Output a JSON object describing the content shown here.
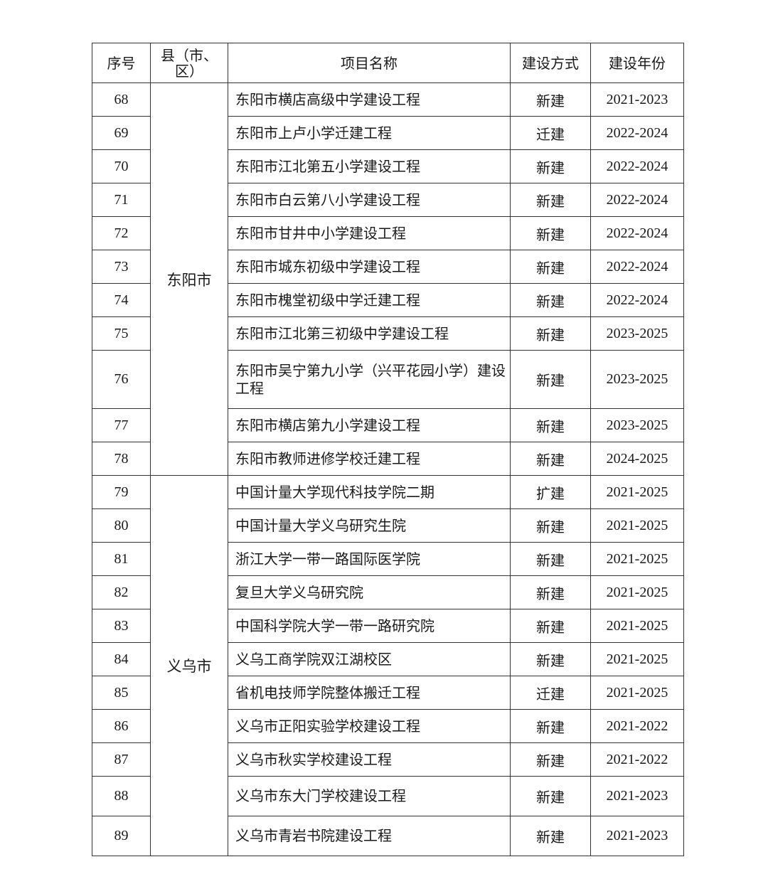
{
  "headers": [
    "序号",
    "县（市、区）",
    "项目名称",
    "建设方式",
    "建设年份"
  ],
  "groups": [
    {
      "county": "东阳市",
      "rows": [
        {
          "no": "68",
          "name": "东阳市横店高级中学建设工程",
          "method": "新建",
          "years": "2021-2023"
        },
        {
          "no": "69",
          "name": "东阳市上卢小学迁建工程",
          "method": "迁建",
          "years": "2022-2024"
        },
        {
          "no": "70",
          "name": "东阳市江北第五小学建设工程",
          "method": "新建",
          "years": "2022-2024"
        },
        {
          "no": "71",
          "name": "东阳市白云第八小学建设工程",
          "method": "新建",
          "years": "2022-2024"
        },
        {
          "no": "72",
          "name": "东阳市甘井中小学建设工程",
          "method": "新建",
          "years": "2022-2024"
        },
        {
          "no": "73",
          "name": "东阳市城东初级中学建设工程",
          "method": "新建",
          "years": "2022-2024"
        },
        {
          "no": "74",
          "name": "东阳市槐堂初级中学迁建工程",
          "method": "新建",
          "years": "2022-2024"
        },
        {
          "no": "75",
          "name": "东阳市江北第三初级中学建设工程",
          "method": "新建",
          "years": "2023-2025"
        },
        {
          "no": "76",
          "name": "东阳市吴宁第九小学（兴平花园小学）建设工程",
          "method": "新建",
          "years": "2023-2025"
        },
        {
          "no": "77",
          "name": "东阳市横店第九小学建设工程",
          "method": "新建",
          "years": "2023-2025"
        },
        {
          "no": "78",
          "name": "东阳市教师进修学校迁建工程",
          "method": "新建",
          "years": "2024-2025"
        }
      ]
    },
    {
      "county": "义乌市",
      "rows": [
        {
          "no": "79",
          "name": "中国计量大学现代科技学院二期",
          "method": "扩建",
          "years": "2021-2025"
        },
        {
          "no": "80",
          "name": "中国计量大学义乌研究生院",
          "method": "新建",
          "years": "2021-2025"
        },
        {
          "no": "81",
          "name": "浙江大学一带一路国际医学院",
          "method": "新建",
          "years": "2021-2025"
        },
        {
          "no": "82",
          "name": "复旦大学义乌研究院",
          "method": "新建",
          "years": "2021-2025"
        },
        {
          "no": "83",
          "name": "中国科学院大学一带一路研究院",
          "method": "新建",
          "years": "2021-2025"
        },
        {
          "no": "84",
          "name": "义乌工商学院双江湖校区",
          "method": "新建",
          "years": "2021-2025"
        },
        {
          "no": "85",
          "name": "省机电技师学院整体搬迁工程",
          "method": "迁建",
          "years": "2021-2025"
        },
        {
          "no": "86",
          "name": "义乌市正阳实验学校建设工程",
          "method": "新建",
          "years": "2021-2022"
        },
        {
          "no": "87",
          "name": "义乌市秋实学校建设工程",
          "method": "新建",
          "years": "2021-2022"
        },
        {
          "no": "88",
          "name": "义乌市东大门学校建设工程",
          "method": "新建",
          "years": "2021-2023"
        },
        {
          "no": "89",
          "name": "义乌市青岩书院建设工程",
          "method": "新建",
          "years": "2021-2023"
        }
      ]
    }
  ]
}
